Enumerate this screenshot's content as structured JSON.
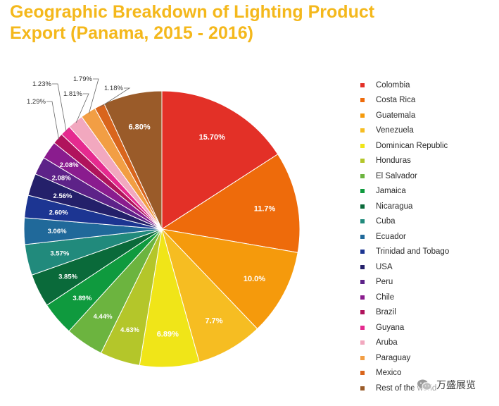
{
  "title": {
    "line1": "Geographic Breakdown of Lighting Product",
    "line2": "Export (Panama, 2015 - 2016)"
  },
  "watermark": {
    "text": "万盛展览",
    "icon": "wechat-icon"
  },
  "chart_data": {
    "type": "pie",
    "title": "Geographic Breakdown of Lighting Product Export (Panama, 2015 - 2016)",
    "start_angle_deg": 0,
    "direction": "clockwise",
    "legend_position": "right",
    "slices": [
      {
        "name": "Colombia",
        "value": 15.7,
        "label": "15.70%",
        "color": "#e33027"
      },
      {
        "name": "Costa Rica",
        "value": 11.7,
        "label": "11.7%",
        "color": "#ee6b0b"
      },
      {
        "name": "Guatemala",
        "value": 10.0,
        "label": "10.0%",
        "color": "#f59a0c"
      },
      {
        "name": "Venezuela",
        "value": 7.7,
        "label": "7.7%",
        "color": "#f6bd22"
      },
      {
        "name": "Dominican Republic",
        "value": 6.89,
        "label": "6.89%",
        "color": "#f0e518"
      },
      {
        "name": "Honduras",
        "value": 4.63,
        "label": "4.63%",
        "color": "#b4c62a"
      },
      {
        "name": "El Salvador",
        "value": 4.44,
        "label": "4.44%",
        "color": "#6cb43f"
      },
      {
        "name": "Jamaica",
        "value": 3.89,
        "label": "3.89%",
        "color": "#0f9a3e"
      },
      {
        "name": "Nicaragua",
        "value": 3.85,
        "label": "3.85%",
        "color": "#0a6a3a"
      },
      {
        "name": "Cuba",
        "value": 3.57,
        "label": "3.57%",
        "color": "#218a7c"
      },
      {
        "name": "Ecuador",
        "value": 3.06,
        "label": "3.06%",
        "color": "#20699a"
      },
      {
        "name": "Trinidad and Tobago",
        "value": 2.6,
        "label": "2.60%",
        "color": "#1c3592"
      },
      {
        "name": "USA",
        "value": 2.56,
        "label": "2.56%",
        "color": "#24206a"
      },
      {
        "name": "Peru",
        "value": 2.08,
        "label": "2.08%",
        "color": "#5d2288"
      },
      {
        "name": "Chile",
        "value": 2.08,
        "label": "2.08%",
        "color": "#8a1c8e"
      },
      {
        "name": "Brazil",
        "value": 1.29,
        "label": "1.29%",
        "color": "#b0135c"
      },
      {
        "name": "Guyana",
        "value": 1.23,
        "label": "1.23%",
        "color": "#e52a8f"
      },
      {
        "name": "Aruba",
        "value": 1.81,
        "label": "1.81%",
        "color": "#f2a8bf"
      },
      {
        "name": "Paraguay",
        "value": 1.79,
        "label": "1.79%",
        "color": "#f29e44"
      },
      {
        "name": "Mexico",
        "value": 1.18,
        "label": "1.18%",
        "color": "#d9651c"
      },
      {
        "name": "Rest of the world",
        "value": 6.8,
        "label": "6.80%",
        "color": "#9a5b29"
      }
    ]
  }
}
